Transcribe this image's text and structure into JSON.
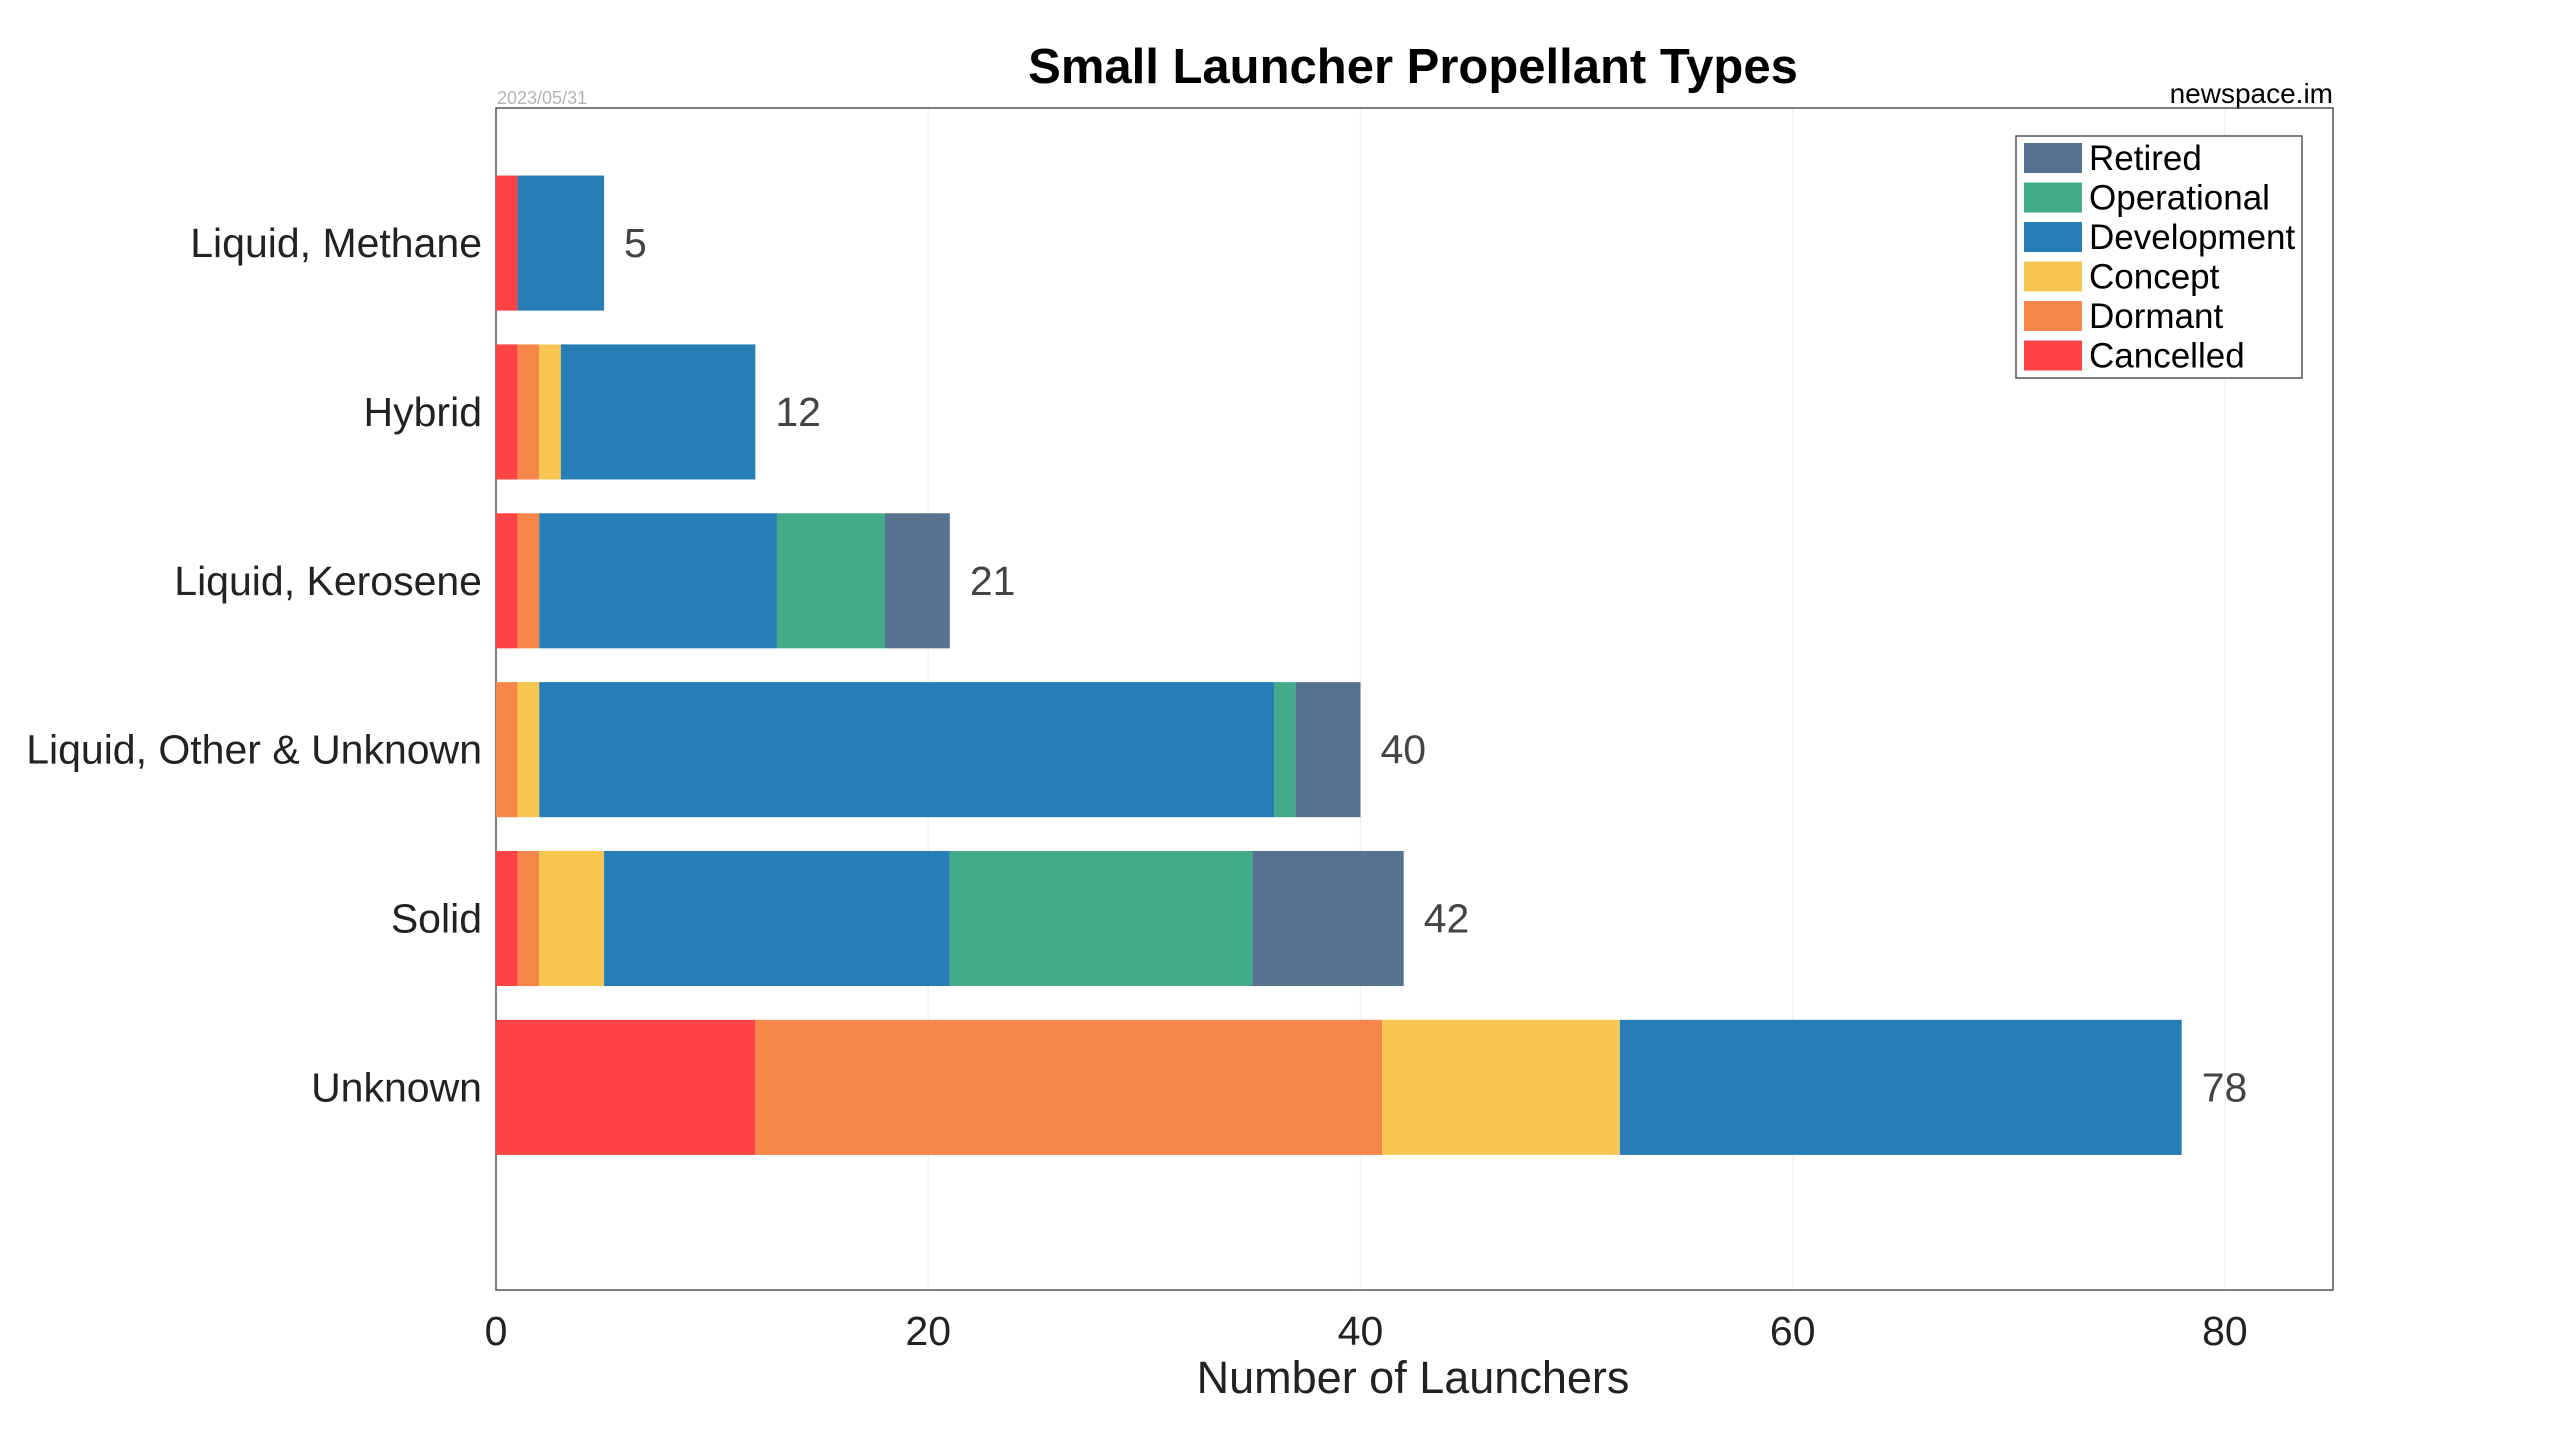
{
  "chart_data": {
    "type": "bar",
    "orientation": "horizontal",
    "stacked": true,
    "title": "Small Launcher Propellant Types",
    "date": "2023/05/31",
    "source": "newspace.im",
    "xlabel": "Number of Launchers",
    "ylabel": "",
    "xlim": [
      0,
      85
    ],
    "xticks": [
      0,
      20,
      40,
      60,
      80
    ],
    "grid": true,
    "legend_position": "top-right",
    "categories": [
      "Liquid, Methane",
      "Hybrid",
      "Liquid, Kerosene",
      "Liquid, Other & Unknown",
      "Solid",
      "Unknown"
    ],
    "totals": [
      5,
      12,
      21,
      40,
      42,
      78
    ],
    "series": [
      {
        "name": "Cancelled",
        "color": "#fc4444",
        "values": [
          1,
          1,
          1,
          0,
          1,
          12
        ]
      },
      {
        "name": "Dormant",
        "color": "#f7864a",
        "values": [
          0,
          1,
          1,
          1,
          1,
          29
        ]
      },
      {
        "name": "Concept",
        "color": "#f8c752",
        "values": [
          0,
          1,
          0,
          1,
          3,
          11
        ]
      },
      {
        "name": "Development",
        "color": "#277db5",
        "values": [
          4,
          9,
          11,
          34,
          16,
          26
        ]
      },
      {
        "name": "Operational",
        "color": "#43ab8a",
        "values": [
          0,
          0,
          5,
          1,
          14,
          0
        ]
      },
      {
        "name": "Retired",
        "color": "#56728f",
        "values": [
          0,
          0,
          3,
          3,
          7,
          0
        ]
      }
    ],
    "legend_order": [
      "Retired",
      "Operational",
      "Development",
      "Concept",
      "Dormant",
      "Cancelled"
    ]
  }
}
